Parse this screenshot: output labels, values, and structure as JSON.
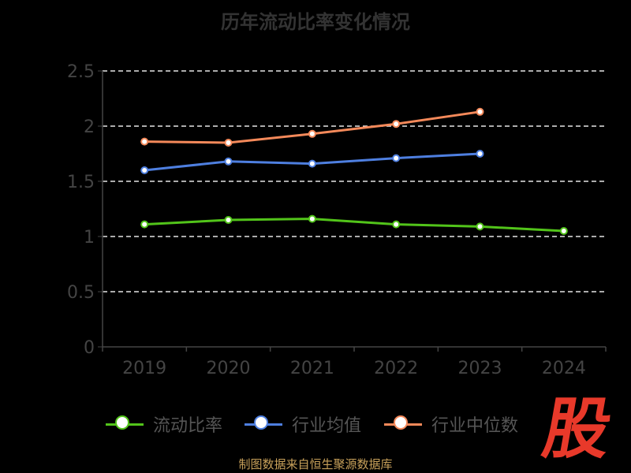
{
  "chart_data": {
    "type": "line",
    "title": "历年流动比率变化情况",
    "categories": [
      "2019",
      "2020",
      "2021",
      "2022",
      "2023",
      "2024"
    ],
    "ylim": [
      0,
      2.5
    ],
    "yticks": [
      "0",
      "0.5",
      "1",
      "1.5",
      "2",
      "2.5"
    ],
    "grid": true,
    "legend_position": "bottom",
    "series": [
      {
        "name": "流动比率",
        "color": "#52c41a",
        "values": [
          1.11,
          1.15,
          1.16,
          1.11,
          1.09,
          1.05
        ]
      },
      {
        "name": "行业均值",
        "color": "#4e7fe0",
        "values": [
          1.6,
          1.68,
          1.66,
          1.71,
          1.75,
          null
        ]
      },
      {
        "name": "行业中位数",
        "color": "#f4895a",
        "values": [
          1.86,
          1.85,
          1.93,
          2.02,
          2.13,
          null
        ]
      }
    ]
  },
  "footer": {
    "source": "制图数据来自恒生聚源数据库"
  },
  "logo": {
    "text": "股"
  }
}
